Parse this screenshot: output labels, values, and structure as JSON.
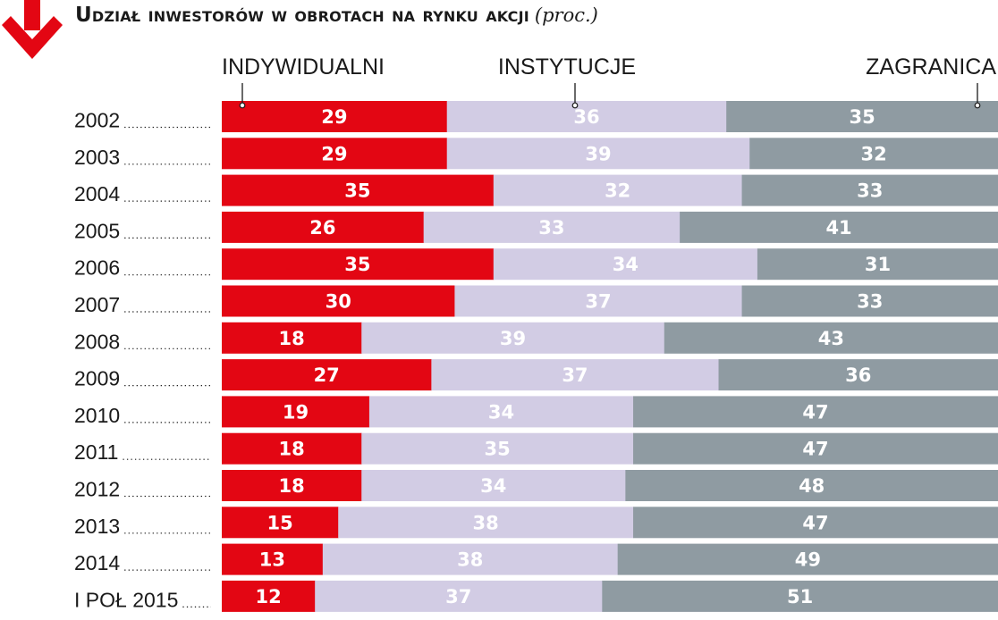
{
  "title": {
    "main": "Udział inwestorów w obrotach na rynku akcji",
    "unit": "(proc.)"
  },
  "colors": {
    "accent": "#e30613",
    "indywidualni": "#e30613",
    "instytucje": "#d2cce4",
    "zagranica": "#8f9ba2"
  },
  "icon": "down-arrow-icon",
  "chart_data": {
    "type": "bar",
    "orientation": "horizontal",
    "stacked": true,
    "unit": "proc.",
    "legend_placement": "top",
    "grid": false,
    "xlim": [
      0,
      100
    ],
    "categories": [
      "2002",
      "2003",
      "2004",
      "2005",
      "2006",
      "2007",
      "2008",
      "2009",
      "2010",
      "2011",
      "2012",
      "2013",
      "2014",
      "I POŁ 2015"
    ],
    "series": [
      {
        "name": "INDYWIDUALNI",
        "color": "#e30613",
        "values": [
          29,
          29,
          35,
          26,
          35,
          30,
          18,
          27,
          19,
          18,
          18,
          15,
          13,
          12
        ]
      },
      {
        "name": "INSTYTUCJE",
        "color": "#d2cce4",
        "values": [
          36,
          39,
          32,
          33,
          34,
          37,
          39,
          37,
          34,
          35,
          34,
          38,
          38,
          37
        ]
      },
      {
        "name": "ZAGRANICA",
        "color": "#8f9ba2",
        "values": [
          35,
          32,
          33,
          41,
          31,
          33,
          43,
          36,
          47,
          47,
          48,
          47,
          49,
          51
        ]
      }
    ]
  }
}
